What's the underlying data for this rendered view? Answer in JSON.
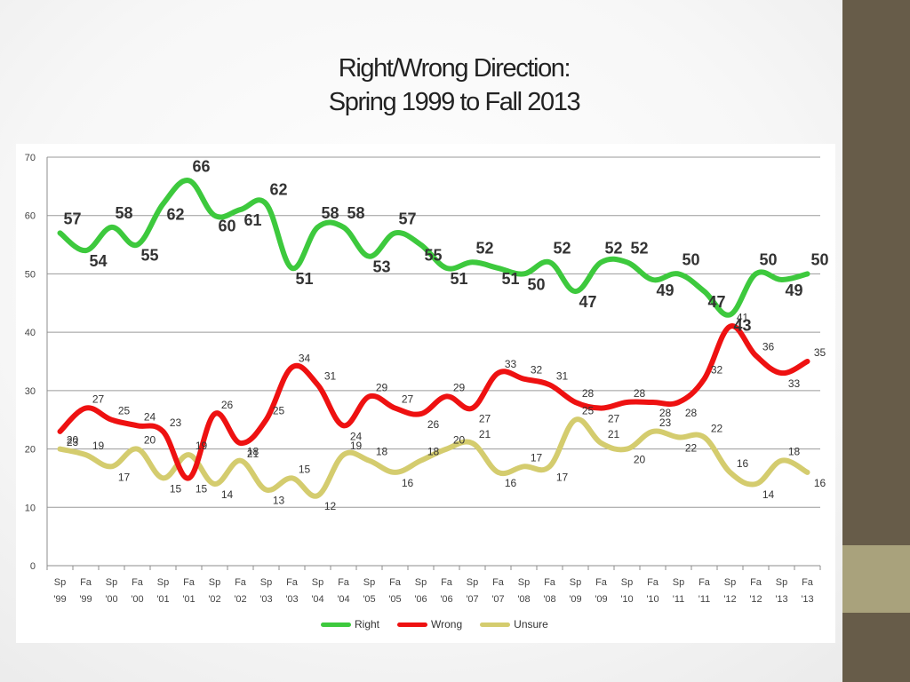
{
  "slide": {
    "title_line1": "Right/Wrong Direction:",
    "title_line2": "Spring 1999 to  Fall 2013"
  },
  "chart_data": {
    "type": "line",
    "categories": [
      [
        "Sp",
        "'99"
      ],
      [
        "Fa",
        "'99"
      ],
      [
        "Sp",
        "'00"
      ],
      [
        "Fa",
        "'00"
      ],
      [
        "Sp",
        "'01"
      ],
      [
        "Fa",
        "'01"
      ],
      [
        "Sp",
        "'02"
      ],
      [
        "Fa",
        "'02"
      ],
      [
        "Sp",
        "'03"
      ],
      [
        "Fa",
        "'03"
      ],
      [
        "Sp",
        "'04"
      ],
      [
        "Fa",
        "'04"
      ],
      [
        "Sp",
        "'05"
      ],
      [
        "Fa",
        "'05"
      ],
      [
        "Sp",
        "'06"
      ],
      [
        "Fa",
        "'06"
      ],
      [
        "Sp",
        "'07"
      ],
      [
        "Fa",
        "'07"
      ],
      [
        "Sp",
        "'08"
      ],
      [
        "Fa",
        "'08"
      ],
      [
        "Sp",
        "'09"
      ],
      [
        "Fa",
        "'09"
      ],
      [
        "Sp",
        "'10"
      ],
      [
        "Fa",
        "'10"
      ],
      [
        "Sp",
        "'11"
      ],
      [
        "Fa",
        "'11"
      ],
      [
        "Sp",
        "'12"
      ],
      [
        "Fa",
        "'12"
      ],
      [
        "Sp",
        "'13"
      ],
      [
        "Fa",
        "'13"
      ]
    ],
    "ylim": [
      0,
      70
    ],
    "yticks": [
      0,
      10,
      20,
      30,
      40,
      50,
      60,
      70
    ],
    "grid": true,
    "legend_position": "bottom",
    "series": [
      {
        "name": "Right",
        "color": "#3dc93d",
        "values": [
          57,
          54,
          58,
          55,
          62,
          66,
          60,
          61,
          62,
          51,
          58,
          58,
          53,
          57,
          55,
          51,
          52,
          51,
          50,
          52,
          47,
          52,
          52,
          49,
          50,
          47,
          43,
          50,
          49,
          50
        ]
      },
      {
        "name": "Wrong",
        "color": "#ee1111",
        "values": [
          23,
          27,
          25,
          24,
          23,
          15,
          26,
          21,
          25,
          34,
          31,
          24,
          29,
          27,
          26,
          29,
          27,
          33,
          32,
          31,
          28,
          27,
          28,
          28,
          28,
          32,
          41,
          36,
          33,
          35
        ]
      },
      {
        "name": "Unsure",
        "color": "#d4cc6e",
        "values": [
          20,
          19,
          17,
          20,
          15,
          19,
          14,
          18,
          13,
          15,
          12,
          19,
          18,
          16,
          18,
          20,
          21,
          16,
          17,
          17,
          25,
          21,
          20,
          23,
          22,
          22,
          16,
          14,
          18,
          16
        ]
      }
    ]
  }
}
